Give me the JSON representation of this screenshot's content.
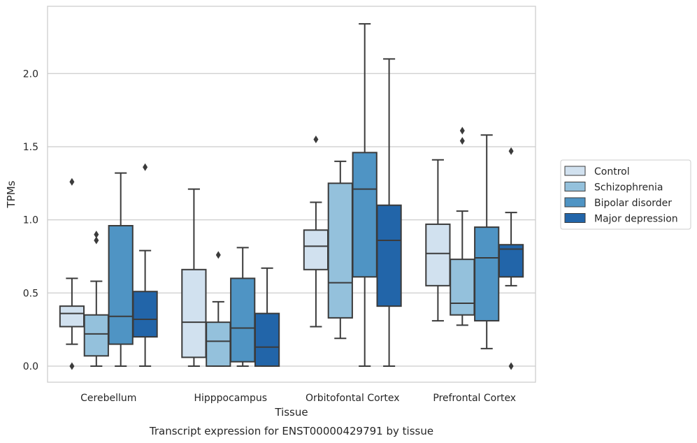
{
  "caption": "Transcript expression for ENST00000429791 by tissue",
  "chart_data": {
    "type": "boxplot",
    "xlabel": "Tissue",
    "ylabel": "TPMs",
    "ylim": [
      -0.11,
      2.46
    ],
    "yticks": [
      0.0,
      0.5,
      1.0,
      1.5,
      2.0
    ],
    "ytick_labels": [
      "0.0",
      "0.5",
      "1.0",
      "1.5",
      "2.0"
    ],
    "grid": "horizontal",
    "legend_position": "right-outside",
    "categories": [
      "Cerebellum",
      "Hipppocampus",
      "Orbitofontal Cortex",
      "Prefrontal Cortex"
    ],
    "series": [
      {
        "name": "Control",
        "color": "#d1e1ef",
        "boxes": [
          {
            "whisker_low": 0.15,
            "q1": 0.27,
            "median": 0.36,
            "q3": 0.41,
            "whisker_high": 0.6,
            "outliers": [
              1.26,
              0.0
            ]
          },
          {
            "whisker_low": 0.0,
            "q1": 0.06,
            "median": 0.3,
            "q3": 0.66,
            "whisker_high": 1.21,
            "outliers": []
          },
          {
            "whisker_low": 0.27,
            "q1": 0.66,
            "median": 0.82,
            "q3": 0.93,
            "whisker_high": 1.12,
            "outliers": [
              1.55
            ]
          },
          {
            "whisker_low": 0.31,
            "q1": 0.55,
            "median": 0.77,
            "q3": 0.97,
            "whisker_high": 1.41,
            "outliers": []
          }
        ]
      },
      {
        "name": "Schizophrenia",
        "color": "#94c1dc",
        "boxes": [
          {
            "whisker_low": 0.0,
            "q1": 0.07,
            "median": 0.22,
            "q3": 0.35,
            "whisker_high": 0.58,
            "outliers": [
              0.9,
              0.86
            ]
          },
          {
            "whisker_low": 0.0,
            "q1": 0.0,
            "median": 0.17,
            "q3": 0.3,
            "whisker_high": 0.44,
            "outliers": [
              0.76
            ]
          },
          {
            "whisker_low": 0.19,
            "q1": 0.33,
            "median": 0.57,
            "q3": 1.25,
            "whisker_high": 1.4,
            "outliers": []
          },
          {
            "whisker_low": 0.28,
            "q1": 0.35,
            "median": 0.43,
            "q3": 0.73,
            "whisker_high": 1.06,
            "outliers": [
              1.61,
              1.54
            ]
          }
        ]
      },
      {
        "name": "Bipolar disorder",
        "color": "#4f94c4",
        "boxes": [
          {
            "whisker_low": 0.0,
            "q1": 0.15,
            "median": 0.34,
            "q3": 0.96,
            "whisker_high": 1.32,
            "outliers": []
          },
          {
            "whisker_low": 0.0,
            "q1": 0.03,
            "median": 0.26,
            "q3": 0.6,
            "whisker_high": 0.81,
            "outliers": []
          },
          {
            "whisker_low": 0.0,
            "q1": 0.61,
            "median": 1.21,
            "q3": 1.46,
            "whisker_high": 2.34,
            "outliers": []
          },
          {
            "whisker_low": 0.12,
            "q1": 0.31,
            "median": 0.74,
            "q3": 0.95,
            "whisker_high": 1.58,
            "outliers": []
          }
        ]
      },
      {
        "name": "Major depression",
        "color": "#2265a9",
        "boxes": [
          {
            "whisker_low": 0.0,
            "q1": 0.2,
            "median": 0.32,
            "q3": 0.51,
            "whisker_high": 0.79,
            "outliers": [
              1.36
            ]
          },
          {
            "whisker_low": 0.0,
            "q1": 0.0,
            "median": 0.13,
            "q3": 0.36,
            "whisker_high": 0.67,
            "outliers": []
          },
          {
            "whisker_low": 0.0,
            "q1": 0.41,
            "median": 0.86,
            "q3": 1.1,
            "whisker_high": 2.1,
            "outliers": []
          },
          {
            "whisker_low": 0.55,
            "q1": 0.61,
            "median": 0.8,
            "q3": 0.83,
            "whisker_high": 1.05,
            "outliers": [
              1.47,
              0.0
            ]
          }
        ]
      }
    ]
  }
}
